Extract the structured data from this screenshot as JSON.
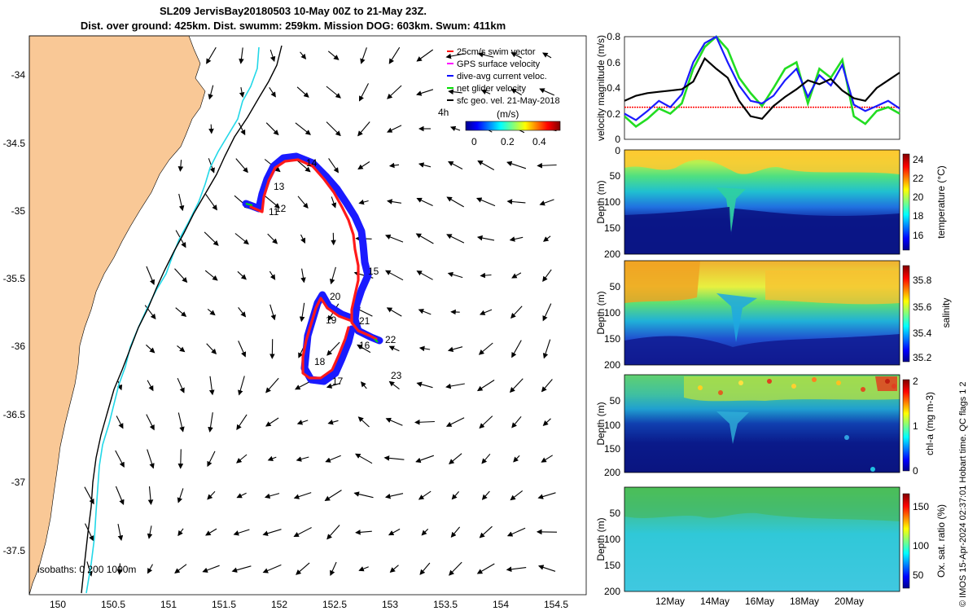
{
  "title_line1": "SL209 JervisBay20180503 10-May 00Z to 21-May 23Z.",
  "title_line2": "Dist. over ground: 425km. Dist. swumm: 259km. Mission DOG: 603km. Swum: 411km",
  "map": {
    "x_ticks": [
      "150",
      "150.5",
      "151",
      "151.5",
      "152",
      "152.5",
      "153",
      "153.5",
      "154",
      "154.5"
    ],
    "y_ticks": [
      "-34",
      "-34.5",
      "-35",
      "-35.5",
      "-36",
      "-36.5",
      "-37",
      "-37.5"
    ],
    "xlim": [
      149.75,
      154.75
    ],
    "ylim": [
      -37.75,
      -33.75
    ],
    "legend": [
      {
        "label": "25cm/s swim vector",
        "color": "#ff0000"
      },
      {
        "label": "GPS surface velocity",
        "color": "#ff00ff"
      },
      {
        "label": "dive-avg current veloc.",
        "color": "#0000ff"
      },
      {
        "label": "net glider velocity",
        "color": "#00dd00"
      },
      {
        "label": "sfc geo. vel. 21-May-2018",
        "color": "#000000"
      }
    ],
    "colorbar": {
      "label": "4h",
      "units": "(m/s)",
      "ticks": [
        "0",
        "0.2",
        "0.4"
      ]
    },
    "waypoints": [
      "11",
      "12",
      "13",
      "14",
      "15",
      "16",
      "17",
      "18",
      "19",
      "20",
      "21",
      "22",
      "23"
    ],
    "isobaths_label": "isobaths: 0   200  1000m",
    "colors": {
      "land": "#f9c896",
      "isobath200": "#22d8e8",
      "isobath1000": "#000000",
      "track_blue": "#1a1aff",
      "track_red": "#ff1a1a"
    }
  },
  "chart_data": [
    {
      "type": "line",
      "title": "",
      "ylabel": "velocity magnitude (m/s)",
      "ylim": [
        0,
        0.8
      ],
      "y_ticks": [
        "0",
        "0.2",
        "0.4",
        "0.6",
        "0.8"
      ],
      "x": [
        0,
        0.5,
        1,
        1.5,
        2,
        2.5,
        3,
        3.5,
        4,
        4.5,
        5,
        5.5,
        6,
        6.5,
        7,
        7.5,
        8,
        8.5,
        9,
        9.5,
        10,
        10.5,
        11,
        11.5,
        12
      ],
      "series": [
        {
          "name": "black",
          "values": [
            0.3,
            0.34,
            0.36,
            0.37,
            0.38,
            0.39,
            0.45,
            0.63,
            0.55,
            0.48,
            0.3,
            0.18,
            0.16,
            0.26,
            0.33,
            0.39,
            0.46,
            0.43,
            0.47,
            0.38,
            0.32,
            0.3,
            0.4,
            0.46,
            0.52
          ]
        },
        {
          "name": "blue",
          "values": [
            0.2,
            0.15,
            0.22,
            0.3,
            0.25,
            0.35,
            0.6,
            0.75,
            0.85,
            0.6,
            0.42,
            0.3,
            0.28,
            0.34,
            0.46,
            0.55,
            0.33,
            0.5,
            0.42,
            0.58,
            0.27,
            0.22,
            0.26,
            0.3,
            0.24
          ]
        },
        {
          "name": "green",
          "values": [
            0.18,
            0.1,
            0.16,
            0.24,
            0.2,
            0.28,
            0.55,
            0.72,
            0.8,
            0.7,
            0.48,
            0.36,
            0.26,
            0.4,
            0.55,
            0.6,
            0.28,
            0.55,
            0.48,
            0.62,
            0.18,
            0.12,
            0.22,
            0.25,
            0.2
          ]
        },
        {
          "name": "red",
          "values": [
            0.25,
            0.25,
            0.25,
            0.25,
            0.25,
            0.25,
            0.25,
            0.25,
            0.25,
            0.25,
            0.25,
            0.25,
            0.25,
            0.25,
            0.25,
            0.25,
            0.25,
            0.25,
            0.25,
            0.25,
            0.25,
            0.25,
            0.25,
            0.25,
            0.25
          ]
        }
      ]
    },
    {
      "type": "heatmap",
      "ylabel": "Depth (m)",
      "y_ticks": [
        "0",
        "50",
        "100",
        "150",
        "200"
      ],
      "colorbar_label": "temperature (°C)",
      "colorbar_ticks": [
        "24",
        "22",
        "20",
        "18",
        "16"
      ]
    },
    {
      "type": "heatmap",
      "ylabel": "Depth (m)",
      "y_ticks": [
        "50",
        "100",
        "150",
        "200"
      ],
      "colorbar_label": "salinity",
      "colorbar_ticks": [
        "35.8",
        "35.6",
        "35.4",
        "35.2"
      ]
    },
    {
      "type": "heatmap",
      "ylabel": "Depth (m)",
      "y_ticks": [
        "50",
        "100",
        "150",
        "200"
      ],
      "colorbar_label": "chl-a (mg m-3)",
      "colorbar_ticks": [
        "2",
        "1",
        "0"
      ]
    },
    {
      "type": "heatmap",
      "ylabel": "Depth (m)",
      "y_ticks": [
        "50",
        "100",
        "150",
        "200"
      ],
      "x_ticks": [
        "12May",
        "14May",
        "16May",
        "18May",
        "20May"
      ],
      "colorbar_label": "Ox. sat. ratio (%)",
      "colorbar_ticks": [
        "150",
        "100",
        "50"
      ]
    }
  ],
  "footer": "© IMOS 15-Apr-2024 02:37:01 Hobart time. QC flags 1  2"
}
